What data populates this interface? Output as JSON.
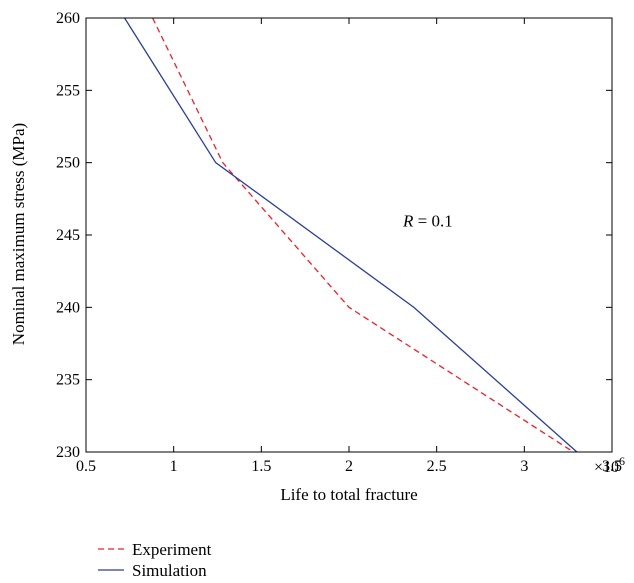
{
  "chart_data": {
    "type": "line",
    "xlabel": "Life to total fracture",
    "ylabel": "Nominal maximum stress (MPa)",
    "x_scale_label": "×10",
    "x_scale_exponent": "6",
    "annotation": {
      "text_var": "R",
      "text_rest": " = 0.1",
      "x": 2.45,
      "y": 245.6
    },
    "xlim": [
      0.5,
      3.5
    ],
    "ylim": [
      230,
      260
    ],
    "xticks": [
      0.5,
      1,
      1.5,
      2,
      2.5,
      3,
      3.5
    ],
    "xtick_labels": [
      "0.5",
      "1",
      "1.5",
      "2",
      "2.5",
      "3",
      "3.5"
    ],
    "yticks": [
      230,
      235,
      240,
      245,
      250,
      255,
      260
    ],
    "ytick_labels": [
      "230",
      "235",
      "240",
      "245",
      "250",
      "255",
      "260"
    ],
    "legend_placement": "bottom-left, below plot",
    "series": [
      {
        "name": "Experiment",
        "color": "#e8202a",
        "dash": "dashed",
        "points": [
          [
            0.88,
            260
          ],
          [
            1.28,
            250
          ],
          [
            2.0,
            240
          ],
          [
            3.28,
            230
          ]
        ]
      },
      {
        "name": "Simulation",
        "color": "#2b3f9a",
        "dash": "solid",
        "points": [
          [
            0.72,
            260
          ],
          [
            1.24,
            250
          ],
          [
            2.37,
            240
          ],
          [
            3.3,
            230
          ]
        ]
      }
    ]
  }
}
